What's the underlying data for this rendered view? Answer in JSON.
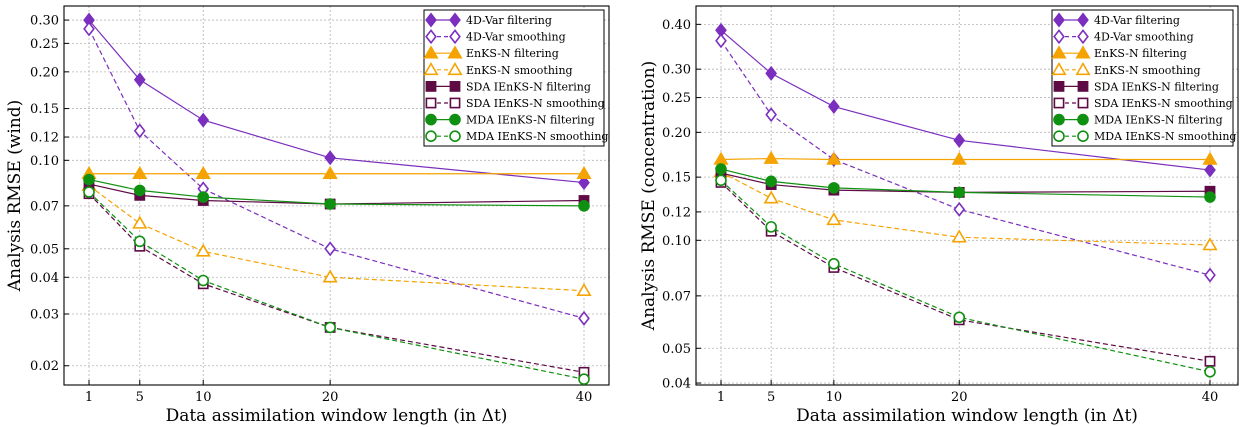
{
  "chart_data": [
    {
      "type": "line",
      "xlabel": "Data assimilation window length (in Δt)",
      "ylabel": "Analysis RMSE (wind)",
      "xscale": "linear",
      "yscale": "log",
      "x": [
        1,
        5,
        10,
        20,
        40
      ],
      "xticks": [
        1,
        5,
        10,
        20,
        40
      ],
      "yticks": [
        0.02,
        0.03,
        0.04,
        0.05,
        0.07,
        0.1,
        0.12,
        0.15,
        0.2,
        0.25,
        0.3
      ],
      "ytick_labels": [
        "0.02",
        "0.03",
        "0.04",
        "0.05",
        "0.07",
        "0.10",
        "0.12",
        "0.15",
        "0.20",
        "0.25",
        "0.30"
      ],
      "grid": true,
      "legend_position": "top-right",
      "series": [
        {
          "name": "4D-Var filtering",
          "values": [
            0.3,
            0.188,
            0.137,
            0.102,
            0.084
          ]
        },
        {
          "name": "4D-Var smoothing",
          "values": [
            0.28,
            0.126,
            0.08,
            0.05,
            0.029
          ]
        },
        {
          "name": "EnKS-N filtering",
          "values": [
            0.09,
            0.09,
            0.09,
            0.09,
            0.09
          ]
        },
        {
          "name": "EnKS-N smoothing",
          "values": [
            0.082,
            0.061,
            0.049,
            0.04,
            0.036
          ]
        },
        {
          "name": "SDA IEnKS-N filtering",
          "values": [
            0.083,
            0.076,
            0.073,
            0.071,
            0.073
          ]
        },
        {
          "name": "SDA IEnKS-N smoothing",
          "values": [
            0.077,
            0.051,
            0.038,
            0.027,
            0.019
          ]
        },
        {
          "name": "MDA IEnKS-N filtering",
          "values": [
            0.086,
            0.079,
            0.075,
            0.071,
            0.07
          ]
        },
        {
          "name": "MDA IEnKS-N smoothing",
          "values": [
            0.078,
            0.053,
            0.039,
            0.027,
            0.018
          ]
        }
      ]
    },
    {
      "type": "line",
      "xlabel": "Data assimilation window length (in Δt)",
      "ylabel": "Analysis RMSE (concentration)",
      "xscale": "linear",
      "yscale": "log",
      "x": [
        1,
        5,
        10,
        20,
        40
      ],
      "xticks": [
        1,
        5,
        10,
        20,
        40
      ],
      "yticks": [
        0.04,
        0.05,
        0.07,
        0.1,
        0.12,
        0.15,
        0.2,
        0.25,
        0.3,
        0.4
      ],
      "ytick_labels": [
        "0.04",
        "0.05",
        "0.07",
        "0.10",
        "0.12",
        "0.15",
        "0.20",
        "0.25",
        "0.30",
        "0.40"
      ],
      "grid": true,
      "legend_position": "top-right",
      "series": [
        {
          "name": "4D-Var filtering",
          "values": [
            0.385,
            0.292,
            0.236,
            0.19,
            0.157
          ]
        },
        {
          "name": "4D-Var smoothing",
          "values": [
            0.36,
            0.224,
            0.168,
            0.122,
            0.08
          ]
        },
        {
          "name": "EnKS-N filtering",
          "values": [
            0.168,
            0.169,
            0.168,
            0.168,
            0.168
          ]
        },
        {
          "name": "EnKS-N smoothing",
          "values": [
            0.155,
            0.131,
            0.114,
            0.102,
            0.097
          ]
        },
        {
          "name": "SDA IEnKS-N filtering",
          "values": [
            0.154,
            0.143,
            0.138,
            0.136,
            0.137
          ]
        },
        {
          "name": "SDA IEnKS-N smoothing",
          "values": [
            0.145,
            0.106,
            0.084,
            0.06,
            0.046
          ]
        },
        {
          "name": "MDA IEnKS-N filtering",
          "values": [
            0.158,
            0.146,
            0.14,
            0.136,
            0.132
          ]
        },
        {
          "name": "MDA IEnKS-N smoothing",
          "values": [
            0.147,
            0.109,
            0.086,
            0.061,
            0.043
          ]
        }
      ]
    }
  ],
  "styles": [
    {
      "color": "#7b2fbe",
      "marker": "diamond",
      "filled": true,
      "dashed": false
    },
    {
      "color": "#7b2fbe",
      "marker": "diamond",
      "filled": false,
      "dashed": true
    },
    {
      "color": "#f5a300",
      "marker": "triangle",
      "filled": true,
      "dashed": false
    },
    {
      "color": "#f5a300",
      "marker": "triangle",
      "filled": false,
      "dashed": true
    },
    {
      "color": "#5e0b45",
      "marker": "square",
      "filled": true,
      "dashed": false
    },
    {
      "color": "#5e0b45",
      "marker": "square",
      "filled": false,
      "dashed": true
    },
    {
      "color": "#109010",
      "marker": "circle",
      "filled": true,
      "dashed": false
    },
    {
      "color": "#109010",
      "marker": "circle",
      "filled": false,
      "dashed": true
    }
  ]
}
